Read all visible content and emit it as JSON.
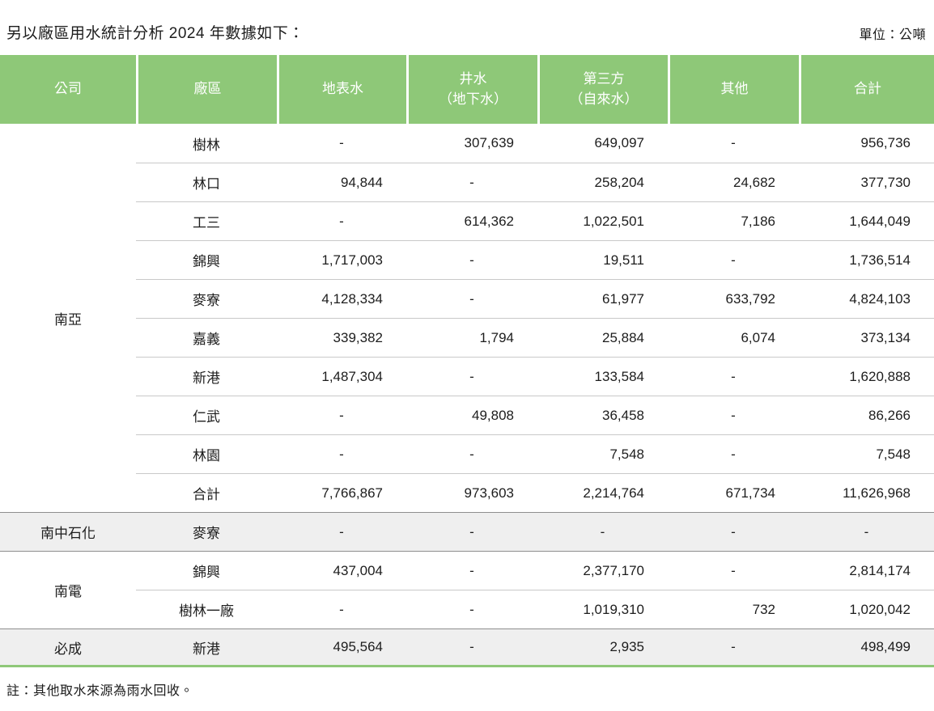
{
  "page": {
    "title": "另以廠區用水統計分析 2024 年數據如下：",
    "unit_label": "單位：公噸",
    "note": "註：其他取水來源為雨水回收。"
  },
  "colors": {
    "header_green": "#8ec878",
    "shaded_row_bg": "#efefef",
    "divider_light": "#c9c9c9",
    "divider_dark": "#8f8f8f",
    "text": "#1d1d1d"
  },
  "chart_data": {
    "type": "table",
    "title": "另以廠區用水統計分析 2024 年數據如下：",
    "unit": "公噸",
    "columns": [
      "公司",
      "廠區",
      "地表水",
      "井水（地下水）",
      "第三方（自來水）",
      "其他",
      "合計"
    ],
    "note": "註：其他取水來源為雨水回收。"
  },
  "table": {
    "headers": [
      "公司",
      "廠區",
      "地表水",
      "井水\n（地下水）",
      "第三方\n（自來水）",
      "其他",
      "合計"
    ],
    "groups": [
      {
        "company": "南亞",
        "shaded": false,
        "rows": [
          {
            "plant": "樹林",
            "values": [
              "-",
              "307,639",
              "649,097",
              "-",
              "956,736"
            ]
          },
          {
            "plant": "林口",
            "values": [
              "94,844",
              "-",
              "258,204",
              "24,682",
              "377,730"
            ]
          },
          {
            "plant": "工三",
            "values": [
              "-",
              "614,362",
              "1,022,501",
              "7,186",
              "1,644,049"
            ]
          },
          {
            "plant": "錦興",
            "values": [
              "1,717,003",
              "-",
              "19,511",
              "-",
              "1,736,514"
            ]
          },
          {
            "plant": "麥寮",
            "values": [
              "4,128,334",
              "-",
              "61,977",
              "633,792",
              "4,824,103"
            ]
          },
          {
            "plant": "嘉義",
            "values": [
              "339,382",
              "1,794",
              "25,884",
              "6,074",
              "373,134"
            ]
          },
          {
            "plant": "新港",
            "values": [
              "1,487,304",
              "-",
              "133,584",
              "-",
              "1,620,888"
            ]
          },
          {
            "plant": "仁武",
            "values": [
              "-",
              "49,808",
              "36,458",
              "-",
              "86,266"
            ]
          },
          {
            "plant": "林園",
            "values": [
              "-",
              "-",
              "7,548",
              "-",
              "7,548"
            ]
          },
          {
            "plant": "合計",
            "values": [
              "7,766,867",
              "973,603",
              "2,214,764",
              "671,734",
              "11,626,968"
            ]
          }
        ]
      },
      {
        "company": "南中石化",
        "shaded": true,
        "rows": [
          {
            "plant": "麥寮",
            "values": [
              "-",
              "-",
              "-",
              "-",
              "-"
            ]
          }
        ]
      },
      {
        "company": "南電",
        "shaded": false,
        "rows": [
          {
            "plant": "錦興",
            "values": [
              "437,004",
              "-",
              "2,377,170",
              "-",
              "2,814,174"
            ]
          },
          {
            "plant": "樹林一廠",
            "values": [
              "-",
              "-",
              "1,019,310",
              "732",
              "1,020,042"
            ]
          }
        ]
      },
      {
        "company": "必成",
        "shaded": true,
        "rows": [
          {
            "plant": "新港",
            "values": [
              "495,564",
              "-",
              "2,935",
              "-",
              "498,499"
            ]
          }
        ]
      }
    ]
  }
}
